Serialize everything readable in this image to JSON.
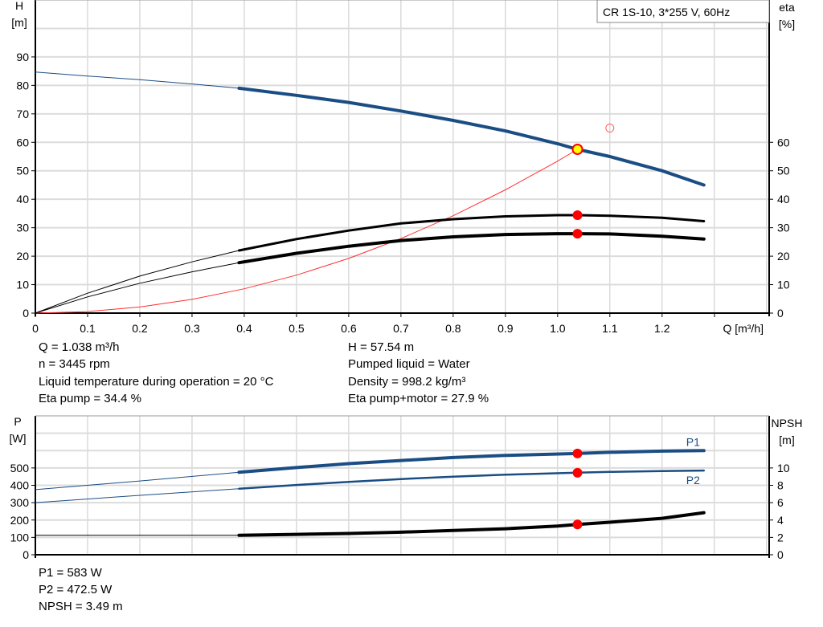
{
  "colors": {
    "head": "#1a4d84",
    "eta": "#000000",
    "system": "#ff3030",
    "duty_point": "#ff0000",
    "duty_fill": "#ffff00",
    "grid": "#c8c8c8",
    "p": "#1a4d84"
  },
  "chart_data": [
    {
      "type": "line",
      "title": "CR 1S-10, 3*255 V, 60Hz",
      "xlabel": "Q [m³/h]",
      "ylabel": "H\n[m]",
      "ylabel_line1": "H",
      "ylabel_line2": "[m]",
      "y2label_line1": "eta",
      "y2label_line2": "[%]",
      "xlim": [
        0,
        1.405
      ],
      "ylim": [
        0,
        110
      ],
      "y2lim": [
        0,
        110
      ],
      "xticks": [
        "0",
        "0.1",
        "0.2",
        "0.3",
        "0.4",
        "0.5",
        "0.6",
        "0.7",
        "0.8",
        "0.9",
        "1.0",
        "1.1",
        "1.2"
      ],
      "yticks": [
        "0",
        "10",
        "20",
        "30",
        "40",
        "50",
        "60",
        "70",
        "80",
        "90"
      ],
      "y2ticks": [
        "0",
        "10",
        "20",
        "30",
        "40",
        "50",
        "60"
      ],
      "grid": true,
      "series": [
        {
          "id": "H",
          "axis": "left",
          "x": [
            0,
            0.1,
            0.2,
            0.3,
            0.39,
            0.5,
            0.6,
            0.7,
            0.8,
            0.9,
            1.0,
            1.038,
            1.1,
            1.2,
            1.28
          ],
          "y": [
            84.7,
            83.3,
            82,
            80.5,
            79,
            76.5,
            74,
            71,
            67.7,
            64,
            59.5,
            57.54,
            55,
            50,
            45
          ],
          "thick_from": 0.39
        },
        {
          "id": "eta_pump",
          "axis": "right",
          "x": [
            0,
            0.1,
            0.2,
            0.3,
            0.39,
            0.5,
            0.6,
            0.7,
            0.8,
            0.9,
            1.0,
            1.038,
            1.1,
            1.2,
            1.28
          ],
          "y": [
            0,
            7,
            13,
            18,
            22,
            26,
            29,
            31.5,
            33,
            34,
            34.4,
            34.4,
            34.2,
            33.5,
            32.3
          ],
          "thick_from": 0.39
        },
        {
          "id": "eta_pump_motor",
          "axis": "right",
          "x": [
            0,
            0.1,
            0.2,
            0.3,
            0.39,
            0.5,
            0.6,
            0.7,
            0.8,
            0.9,
            1.0,
            1.038,
            1.1,
            1.2,
            1.28
          ],
          "y": [
            0,
            5.7,
            10.5,
            14.5,
            17.7,
            21,
            23.5,
            25.5,
            26.8,
            27.6,
            27.9,
            27.9,
            27.8,
            27,
            26
          ],
          "thick_from": 0.39
        },
        {
          "id": "system_curve",
          "axis": "left",
          "x": [
            0,
            0.1,
            0.2,
            0.3,
            0.4,
            0.5,
            0.6,
            0.7,
            0.8,
            0.9,
            1.0,
            1.038
          ],
          "y": [
            0,
            0.53,
            2.14,
            4.81,
            8.55,
            13.35,
            19.2,
            26.2,
            34.2,
            43.3,
            53.4,
            57.54
          ]
        }
      ],
      "duty_points": [
        {
          "x": 1.038,
          "y": 57.54,
          "kind": "head"
        },
        {
          "x": 1.038,
          "y": 34.4,
          "kind": "eta"
        },
        {
          "x": 1.038,
          "y": 27.9,
          "kind": "eta"
        }
      ],
      "open_marker": {
        "x": 1.1,
        "y": 65
      }
    },
    {
      "type": "line",
      "ylabel_line1": "P",
      "ylabel_line2": "[W]",
      "y2label_line1": "NPSH",
      "y2label_line2": "[m]",
      "xlim": [
        0,
        1.405
      ],
      "ylim": [
        0,
        800
      ],
      "y2lim": [
        0,
        16
      ],
      "yticks": [
        "0",
        "100",
        "200",
        "300",
        "400",
        "500"
      ],
      "y2ticks": [
        "0",
        "2",
        "4",
        "6",
        "8",
        "10"
      ],
      "grid": true,
      "series": [
        {
          "id": "P1",
          "name": "P1",
          "axis": "left",
          "x": [
            0,
            0.2,
            0.39,
            0.5,
            0.6,
            0.7,
            0.8,
            0.9,
            1.038,
            1.1,
            1.2,
            1.28
          ],
          "y": [
            375,
            425,
            475,
            502,
            525,
            543,
            560,
            572,
            583,
            590,
            597,
            600
          ],
          "thick_from": 0.39
        },
        {
          "id": "P2",
          "name": "P2",
          "axis": "left",
          "x": [
            0,
            0.2,
            0.39,
            0.5,
            0.6,
            0.7,
            0.8,
            0.9,
            1.038,
            1.1,
            1.2,
            1.28
          ],
          "y": [
            300,
            342,
            380,
            402,
            420,
            436,
            450,
            461,
            472.5,
            477,
            482,
            485
          ],
          "thick_from": 0.39
        },
        {
          "id": "NPSH",
          "axis": "right",
          "x": [
            0,
            0.39,
            0.5,
            0.6,
            0.7,
            0.8,
            0.9,
            1.0,
            1.038,
            1.1,
            1.2,
            1.28
          ],
          "y": [
            2.25,
            2.25,
            2.35,
            2.45,
            2.6,
            2.8,
            3.0,
            3.3,
            3.49,
            3.75,
            4.2,
            4.85
          ],
          "thick_from": 0.39
        }
      ],
      "duty_points": [
        {
          "x": 1.038,
          "y": 583,
          "axis": "left"
        },
        {
          "x": 1.038,
          "y": 472.5,
          "axis": "left"
        },
        {
          "x": 1.038,
          "y": 3.49,
          "axis": "right"
        }
      ]
    }
  ],
  "info_top": {
    "left": [
      "Q = 1.038 m³/h",
      "n = 3445 rpm",
      "Liquid temperature during operation = 20 °C",
      "Eta pump = 34.4 %"
    ],
    "right": [
      "H = 57.54 m",
      "Pumped liquid = Water",
      "Density = 998.2 kg/m³",
      "Eta pump+motor = 27.9 %"
    ]
  },
  "info_bottom": [
    "P1 = 583 W",
    "P2 = 472.5 W",
    "NPSH = 3.49 m"
  ]
}
